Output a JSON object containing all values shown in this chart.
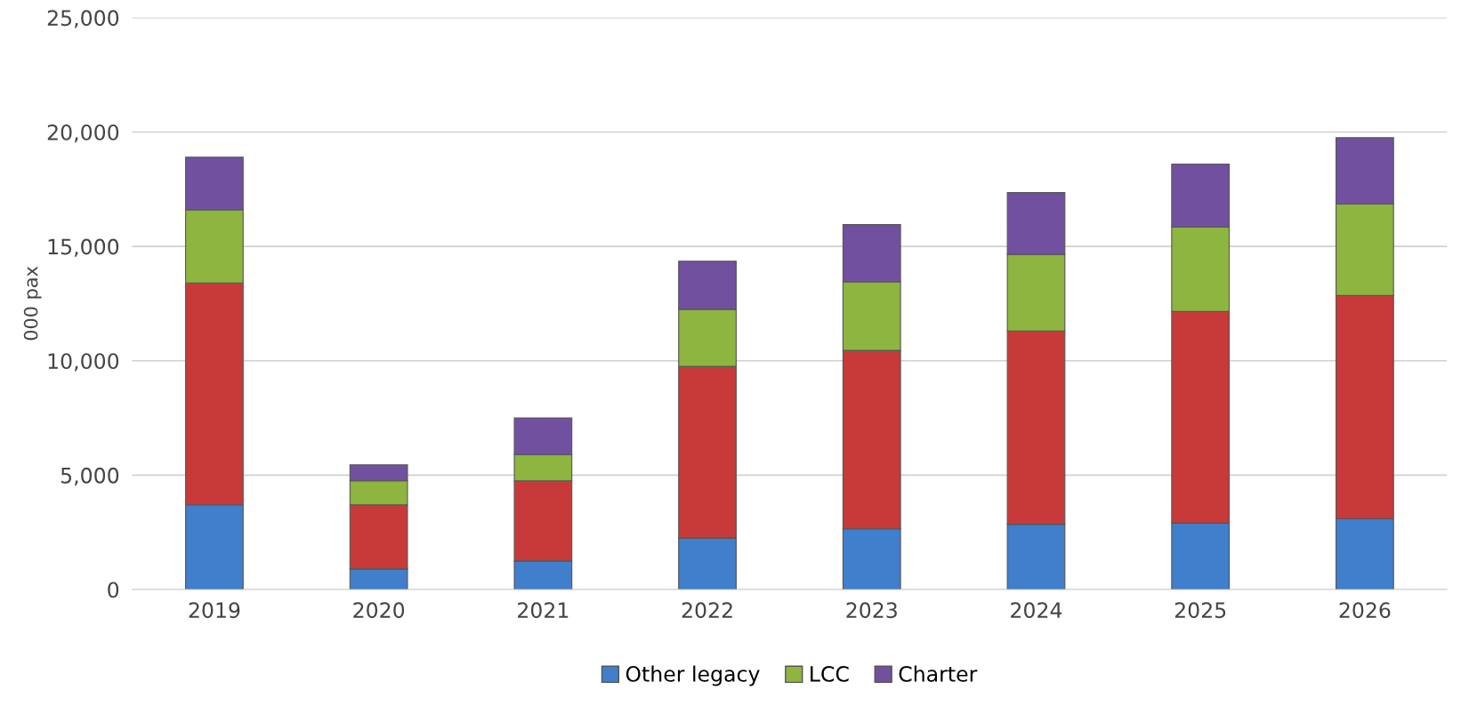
{
  "chart_data": {
    "type": "bar",
    "stacked": true,
    "ylabel": "000 pax",
    "categories": [
      "2019",
      "2020",
      "2021",
      "2022",
      "2023",
      "2024",
      "2025",
      "2026"
    ],
    "series": [
      {
        "name": "Other legacy",
        "color": "#3f7fcc",
        "values": [
          3700,
          900,
          1250,
          2250,
          2650,
          2850,
          2900,
          3100
        ]
      },
      {
        "color": "#c83a3a",
        "values": [
          9700,
          2800,
          3500,
          7500,
          7800,
          8450,
          9250,
          9750
        ]
      },
      {
        "name": "LCC",
        "color": "#8db53f",
        "values": [
          3200,
          1050,
          1150,
          2500,
          3000,
          3350,
          3700,
          4000
        ]
      },
      {
        "name": "Charter",
        "color": "#7150a0",
        "values": [
          2300,
          700,
          1600,
          2100,
          2500,
          2700,
          2750,
          2900
        ]
      }
    ],
    "ylim": [
      0,
      25000
    ],
    "yticks": [
      {
        "value": 0,
        "label": "0"
      },
      {
        "value": 5000,
        "label": "5,000"
      },
      {
        "value": 10000,
        "label": "10,000"
      },
      {
        "value": 15000,
        "label": "15,000"
      },
      {
        "value": 20000,
        "label": "20,000"
      },
      {
        "value": 25000,
        "label": "25,000"
      }
    ],
    "grid": "y",
    "legend": "bottom"
  }
}
